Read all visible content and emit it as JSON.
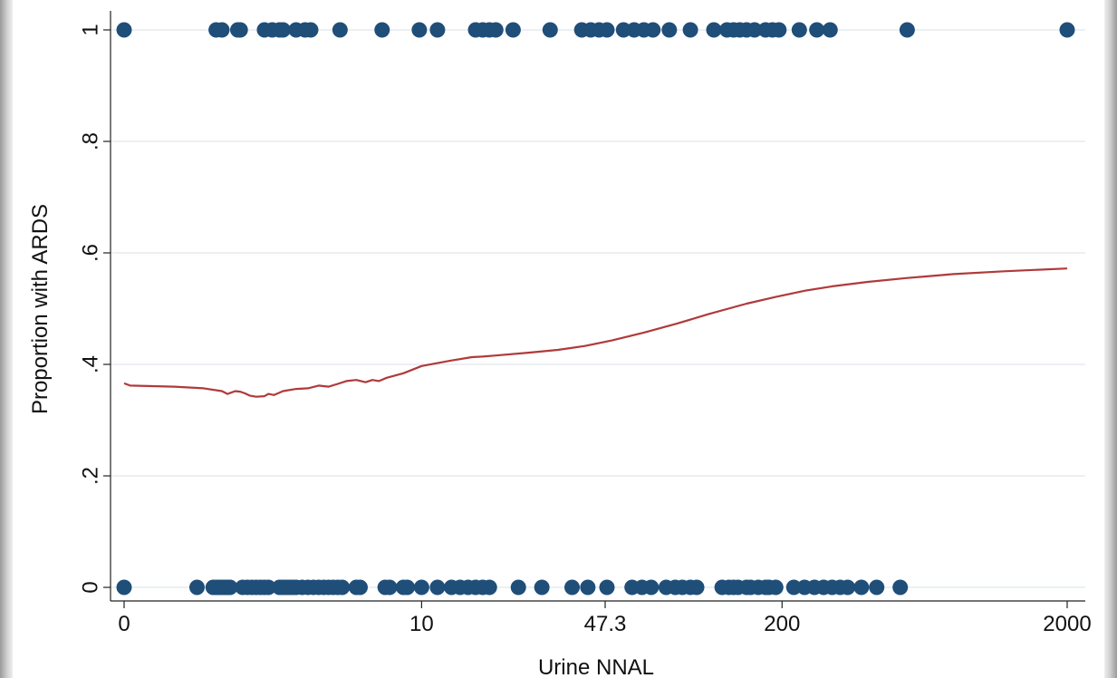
{
  "chart_data": {
    "type": "scatter",
    "xlabel": "Urine NNAL",
    "ylabel": "Proportion with ARDS",
    "x_scale": "log",
    "x_ticks": [
      {
        "value": 0,
        "label": "0"
      },
      {
        "value": 10,
        "label": "10"
      },
      {
        "value": 47.3,
        "label": "47.3"
      },
      {
        "value": 200,
        "label": "200"
      },
      {
        "value": 2000,
        "label": "2000"
      }
    ],
    "y_ticks": [
      {
        "value": 0,
        "label": "0"
      },
      {
        "value": 0.2,
        "label": ".2"
      },
      {
        "value": 0.4,
        "label": ".4"
      },
      {
        "value": 0.6,
        "label": ".6"
      },
      {
        "value": 0.8,
        "label": ".8"
      },
      {
        "value": 1,
        "label": "1"
      }
    ],
    "ylim": [
      0,
      1
    ],
    "grid": true,
    "colors": {
      "points": "#1f4e79",
      "smoother": "#b03a3a"
    },
    "series": [
      {
        "type": "scatter",
        "points": [
          {
            "x": 0,
            "y": 1
          },
          {
            "x": 1.1,
            "y": 1
          },
          {
            "x": 1.2,
            "y": 1
          },
          {
            "x": 1.5,
            "y": 1
          },
          {
            "x": 1.55,
            "y": 1
          },
          {
            "x": 2.1,
            "y": 1
          },
          {
            "x": 2.3,
            "y": 1
          },
          {
            "x": 2.5,
            "y": 1
          },
          {
            "x": 2.6,
            "y": 1
          },
          {
            "x": 3.0,
            "y": 1
          },
          {
            "x": 3.3,
            "y": 1
          },
          {
            "x": 3.5,
            "y": 1
          },
          {
            "x": 4.7,
            "y": 1
          },
          {
            "x": 7.0,
            "y": 1
          },
          {
            "x": 9.8,
            "y": 1
          },
          {
            "x": 11.5,
            "y": 1
          },
          {
            "x": 16,
            "y": 1
          },
          {
            "x": 17,
            "y": 1
          },
          {
            "x": 18,
            "y": 1
          },
          {
            "x": 19,
            "y": 1
          },
          {
            "x": 22,
            "y": 1
          },
          {
            "x": 30,
            "y": 1
          },
          {
            "x": 39,
            "y": 1
          },
          {
            "x": 42,
            "y": 1
          },
          {
            "x": 45,
            "y": 1
          },
          {
            "x": 48,
            "y": 1
          },
          {
            "x": 55,
            "y": 1
          },
          {
            "x": 60,
            "y": 1
          },
          {
            "x": 65,
            "y": 1
          },
          {
            "x": 70,
            "y": 1
          },
          {
            "x": 80,
            "y": 1
          },
          {
            "x": 95,
            "y": 1
          },
          {
            "x": 115,
            "y": 1
          },
          {
            "x": 128,
            "y": 1
          },
          {
            "x": 135,
            "y": 1
          },
          {
            "x": 142,
            "y": 1
          },
          {
            "x": 150,
            "y": 1
          },
          {
            "x": 160,
            "y": 1
          },
          {
            "x": 175,
            "y": 1
          },
          {
            "x": 185,
            "y": 1
          },
          {
            "x": 195,
            "y": 1
          },
          {
            "x": 230,
            "y": 1
          },
          {
            "x": 265,
            "y": 1
          },
          {
            "x": 295,
            "y": 1
          },
          {
            "x": 550,
            "y": 1
          },
          {
            "x": 2000,
            "y": 1
          },
          {
            "x": 0,
            "y": 0
          },
          {
            "x": 0.8,
            "y": 0
          },
          {
            "x": 1.05,
            "y": 0
          },
          {
            "x": 1.1,
            "y": 0
          },
          {
            "x": 1.15,
            "y": 0
          },
          {
            "x": 1.2,
            "y": 0
          },
          {
            "x": 1.25,
            "y": 0
          },
          {
            "x": 1.3,
            "y": 0
          },
          {
            "x": 1.35,
            "y": 0
          },
          {
            "x": 1.6,
            "y": 0
          },
          {
            "x": 1.7,
            "y": 0
          },
          {
            "x": 1.8,
            "y": 0
          },
          {
            "x": 1.9,
            "y": 0
          },
          {
            "x": 2.0,
            "y": 0
          },
          {
            "x": 2.1,
            "y": 0
          },
          {
            "x": 2.2,
            "y": 0
          },
          {
            "x": 2.5,
            "y": 0
          },
          {
            "x": 2.6,
            "y": 0
          },
          {
            "x": 2.7,
            "y": 0
          },
          {
            "x": 2.8,
            "y": 0
          },
          {
            "x": 2.9,
            "y": 0
          },
          {
            "x": 3.0,
            "y": 0
          },
          {
            "x": 3.2,
            "y": 0
          },
          {
            "x": 3.4,
            "y": 0
          },
          {
            "x": 3.6,
            "y": 0
          },
          {
            "x": 3.8,
            "y": 0
          },
          {
            "x": 4.0,
            "y": 0
          },
          {
            "x": 4.2,
            "y": 0
          },
          {
            "x": 4.4,
            "y": 0
          },
          {
            "x": 4.6,
            "y": 0
          },
          {
            "x": 4.8,
            "y": 0
          },
          {
            "x": 5.5,
            "y": 0
          },
          {
            "x": 5.7,
            "y": 0
          },
          {
            "x": 7.2,
            "y": 0
          },
          {
            "x": 7.5,
            "y": 0
          },
          {
            "x": 8.5,
            "y": 0
          },
          {
            "x": 8.8,
            "y": 0
          },
          {
            "x": 10,
            "y": 0
          },
          {
            "x": 11.5,
            "y": 0
          },
          {
            "x": 13,
            "y": 0
          },
          {
            "x": 14,
            "y": 0
          },
          {
            "x": 15,
            "y": 0
          },
          {
            "x": 16,
            "y": 0
          },
          {
            "x": 17,
            "y": 0
          },
          {
            "x": 18,
            "y": 0
          },
          {
            "x": 23,
            "y": 0
          },
          {
            "x": 28,
            "y": 0
          },
          {
            "x": 36,
            "y": 0
          },
          {
            "x": 41,
            "y": 0
          },
          {
            "x": 48,
            "y": 0
          },
          {
            "x": 59,
            "y": 0
          },
          {
            "x": 64,
            "y": 0
          },
          {
            "x": 69,
            "y": 0
          },
          {
            "x": 78,
            "y": 0
          },
          {
            "x": 84,
            "y": 0
          },
          {
            "x": 89,
            "y": 0
          },
          {
            "x": 95,
            "y": 0
          },
          {
            "x": 100,
            "y": 0
          },
          {
            "x": 123,
            "y": 0
          },
          {
            "x": 130,
            "y": 0
          },
          {
            "x": 135,
            "y": 0
          },
          {
            "x": 140,
            "y": 0
          },
          {
            "x": 150,
            "y": 0
          },
          {
            "x": 155,
            "y": 0
          },
          {
            "x": 165,
            "y": 0
          },
          {
            "x": 175,
            "y": 0
          },
          {
            "x": 180,
            "y": 0
          },
          {
            "x": 190,
            "y": 0
          },
          {
            "x": 220,
            "y": 0
          },
          {
            "x": 240,
            "y": 0
          },
          {
            "x": 260,
            "y": 0
          },
          {
            "x": 280,
            "y": 0
          },
          {
            "x": 300,
            "y": 0
          },
          {
            "x": 320,
            "y": 0
          },
          {
            "x": 340,
            "y": 0
          },
          {
            "x": 380,
            "y": 0
          },
          {
            "x": 430,
            "y": 0
          },
          {
            "x": 520,
            "y": 0
          }
        ]
      },
      {
        "type": "line",
        "points": [
          {
            "x": 0,
            "y": 0.366
          },
          {
            "x": 0.05,
            "y": 0.362
          },
          {
            "x": 0.5,
            "y": 0.36
          },
          {
            "x": 0.9,
            "y": 0.357
          },
          {
            "x": 1.2,
            "y": 0.352
          },
          {
            "x": 1.3,
            "y": 0.347
          },
          {
            "x": 1.45,
            "y": 0.352
          },
          {
            "x": 1.55,
            "y": 0.351
          },
          {
            "x": 1.65,
            "y": 0.348
          },
          {
            "x": 1.75,
            "y": 0.344
          },
          {
            "x": 1.9,
            "y": 0.342
          },
          {
            "x": 2.1,
            "y": 0.343
          },
          {
            "x": 2.2,
            "y": 0.347
          },
          {
            "x": 2.35,
            "y": 0.345
          },
          {
            "x": 2.6,
            "y": 0.352
          },
          {
            "x": 3.0,
            "y": 0.356
          },
          {
            "x": 3.4,
            "y": 0.357
          },
          {
            "x": 3.8,
            "y": 0.362
          },
          {
            "x": 4.2,
            "y": 0.36
          },
          {
            "x": 4.6,
            "y": 0.365
          },
          {
            "x": 5.0,
            "y": 0.37
          },
          {
            "x": 5.5,
            "y": 0.372
          },
          {
            "x": 6.0,
            "y": 0.368
          },
          {
            "x": 6.4,
            "y": 0.372
          },
          {
            "x": 6.8,
            "y": 0.37
          },
          {
            "x": 7.3,
            "y": 0.376
          },
          {
            "x": 8.5,
            "y": 0.384
          },
          {
            "x": 10,
            "y": 0.397
          },
          {
            "x": 13,
            "y": 0.407
          },
          {
            "x": 15.5,
            "y": 0.413
          },
          {
            "x": 17,
            "y": 0.414
          },
          {
            "x": 19,
            "y": 0.416
          },
          {
            "x": 25,
            "y": 0.421
          },
          {
            "x": 32,
            "y": 0.426
          },
          {
            "x": 40,
            "y": 0.433
          },
          {
            "x": 50,
            "y": 0.443
          },
          {
            "x": 65,
            "y": 0.457
          },
          {
            "x": 85,
            "y": 0.473
          },
          {
            "x": 110,
            "y": 0.49
          },
          {
            "x": 150,
            "y": 0.509
          },
          {
            "x": 190,
            "y": 0.521
          },
          {
            "x": 240,
            "y": 0.532
          },
          {
            "x": 300,
            "y": 0.54
          },
          {
            "x": 400,
            "y": 0.548
          },
          {
            "x": 550,
            "y": 0.555
          },
          {
            "x": 800,
            "y": 0.562
          },
          {
            "x": 1200,
            "y": 0.567
          },
          {
            "x": 2000,
            "y": 0.572
          }
        ]
      }
    ]
  }
}
